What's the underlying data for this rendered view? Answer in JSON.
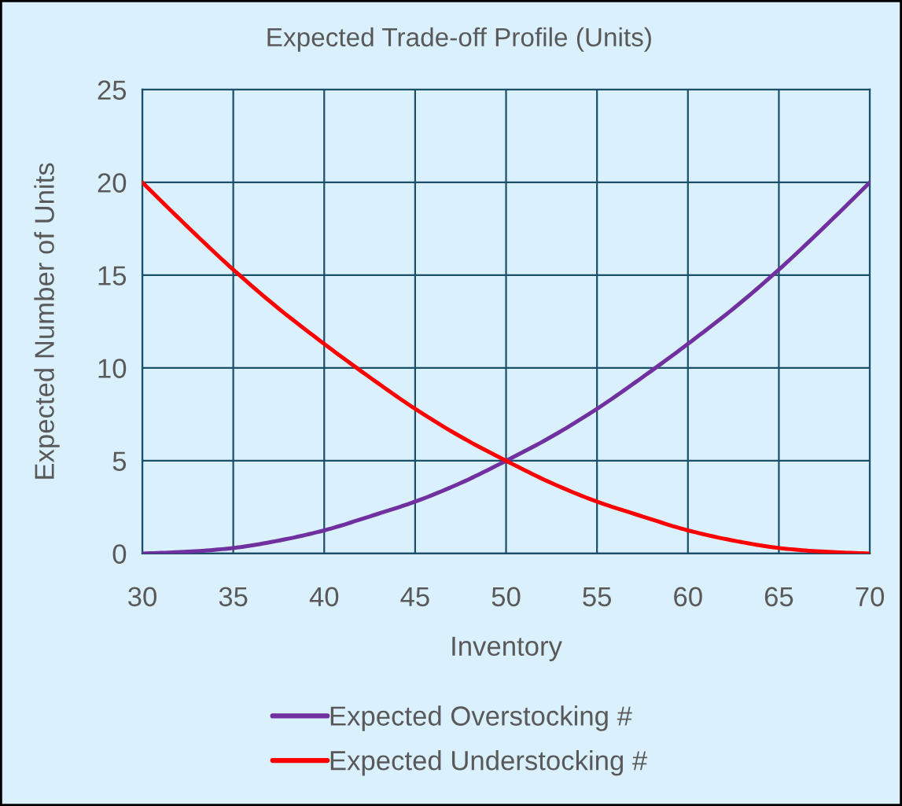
{
  "chart_data": {
    "type": "line",
    "title": "Expected Trade-off Profile (Units)",
    "xlabel": "Inventory",
    "ylabel": "Expected Number of Units",
    "x": [
      30,
      32.5,
      35,
      37.5,
      40,
      42.5,
      45,
      47.5,
      50,
      52.5,
      55,
      57.5,
      60,
      62.5,
      65,
      67.5,
      70
    ],
    "series": [
      {
        "name": "Expected Overstocking #",
        "color": "#7030a0",
        "values": [
          0,
          0.1,
          0.3,
          0.7,
          1.25,
          2.0,
          2.8,
          3.8,
          5,
          6.3,
          7.8,
          9.5,
          11.3,
          13.2,
          15.3,
          17.6,
          20
        ]
      },
      {
        "name": "Expected Understocking #",
        "color": "#ff0000",
        "values": [
          20,
          17.6,
          15.3,
          13.2,
          11.3,
          9.5,
          7.8,
          6.3,
          5,
          3.8,
          2.8,
          2.0,
          1.25,
          0.7,
          0.3,
          0.1,
          0
        ]
      }
    ],
    "xlim": [
      30,
      70
    ],
    "xticks": [
      30,
      35,
      40,
      45,
      50,
      55,
      60,
      65,
      70
    ],
    "ylim": [
      0,
      25
    ],
    "yticks": [
      0,
      5,
      10,
      15,
      20,
      25
    ],
    "grid": true,
    "legend": "bottom",
    "marker": "none",
    "line_style": "solid"
  }
}
